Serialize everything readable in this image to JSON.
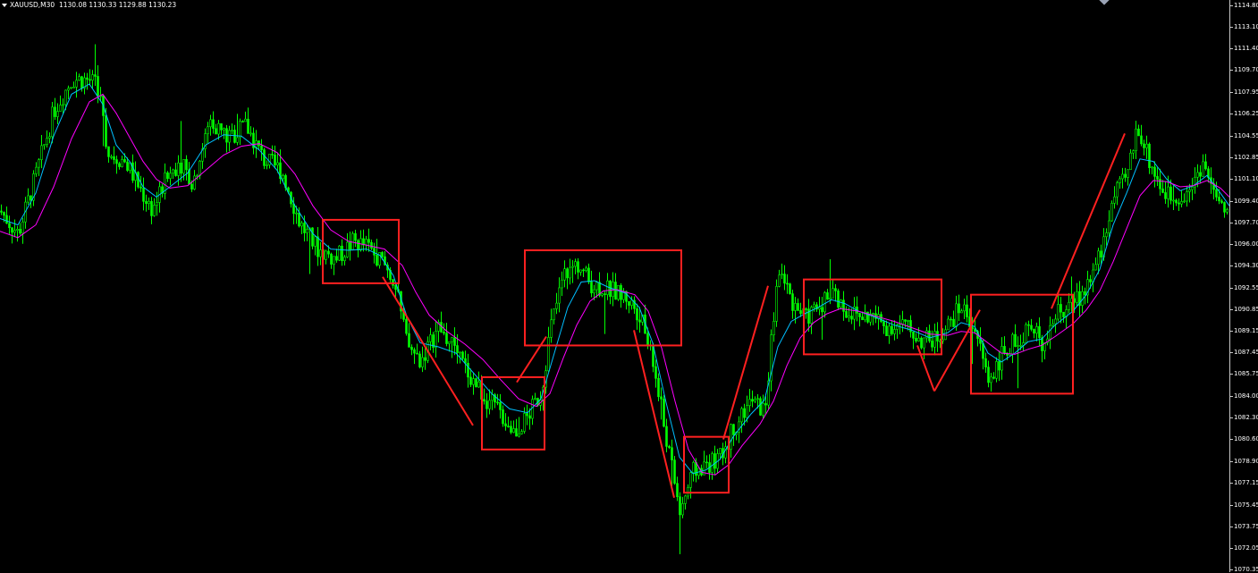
{
  "header": {
    "symbol": "XAUUSD,M30",
    "ohlc": "1130.08 1130.33 1129.88 1130.23"
  },
  "colors": {
    "background": "#000000",
    "candle": "#00ff00",
    "ma_fast": "#00bfff",
    "ma_slow": "#ff00ff",
    "annotation": "#ff2020",
    "axis_text": "#ffffff"
  },
  "chart_data": {
    "type": "line",
    "title": "",
    "xlabel": "",
    "ylabel": "",
    "ylim": [
      1070.35,
      1114.8
    ],
    "y_ticks": [
      "1114.80",
      "1113.10",
      "1111.40",
      "1109.70",
      "1107.95",
      "1106.25",
      "1104.55",
      "1102.85",
      "1101.10",
      "1099.40",
      "1097.70",
      "1096.00",
      "1094.30",
      "1092.55",
      "1090.85",
      "1089.15",
      "1087.45",
      "1085.75",
      "1084.00",
      "1082.30",
      "1080.60",
      "1078.90",
      "1077.15",
      "1075.45",
      "1073.75",
      "1072.05",
      "1070.35"
    ],
    "series": [
      {
        "style": "candles",
        "points": [
          [
            0,
            1098.6
          ],
          [
            20,
            1096.8
          ],
          [
            40,
            1101.5
          ],
          [
            60,
            1106.5
          ],
          [
            80,
            1109.0
          ],
          [
            100,
            1108.9
          ],
          [
            110,
            1108.3
          ],
          [
            120,
            1103.2
          ],
          [
            140,
            1102.5
          ],
          [
            155,
            1100.5
          ],
          [
            170,
            1098.7
          ],
          [
            185,
            1101.0
          ],
          [
            200,
            1102.6
          ],
          [
            215,
            1100.8
          ],
          [
            235,
            1105.8
          ],
          [
            255,
            1104.3
          ],
          [
            275,
            1105.3
          ],
          [
            295,
            1102.6
          ],
          [
            315,
            1101.8
          ],
          [
            335,
            1097.6
          ],
          [
            355,
            1095.6
          ],
          [
            375,
            1094.8
          ],
          [
            395,
            1096.2
          ],
          [
            410,
            1095.8
          ],
          [
            425,
            1094.8
          ],
          [
            440,
            1093.2
          ],
          [
            455,
            1088.0
          ],
          [
            470,
            1086.8
          ],
          [
            490,
            1089.4
          ],
          [
            505,
            1088.0
          ],
          [
            520,
            1086.2
          ],
          [
            540,
            1084.1
          ],
          [
            560,
            1082.6
          ],
          [
            575,
            1081.2
          ],
          [
            590,
            1082.4
          ],
          [
            605,
            1084.3
          ],
          [
            615,
            1089.3
          ],
          [
            630,
            1093.5
          ],
          [
            645,
            1094.5
          ],
          [
            660,
            1092.9
          ],
          [
            680,
            1092.4
          ],
          [
            700,
            1091.8
          ],
          [
            715,
            1090.5
          ],
          [
            730,
            1086.6
          ],
          [
            745,
            1080.6
          ],
          [
            760,
            1074.9
          ],
          [
            775,
            1078.0
          ],
          [
            790,
            1078.6
          ],
          [
            805,
            1079.1
          ],
          [
            820,
            1081.6
          ],
          [
            840,
            1083.6
          ],
          [
            855,
            1082.8
          ],
          [
            870,
            1094.1
          ],
          [
            885,
            1091.6
          ],
          [
            900,
            1090.1
          ],
          [
            915,
            1091.1
          ],
          [
            930,
            1092.4
          ],
          [
            945,
            1090.8
          ],
          [
            960,
            1090.3
          ],
          [
            975,
            1090.3
          ],
          [
            990,
            1089.5
          ],
          [
            1010,
            1089.6
          ],
          [
            1030,
            1088.4
          ],
          [
            1045,
            1088.5
          ],
          [
            1060,
            1089.6
          ],
          [
            1075,
            1091.1
          ],
          [
            1090,
            1089.3
          ],
          [
            1105,
            1085.3
          ],
          [
            1120,
            1087.2
          ],
          [
            1135,
            1088.3
          ],
          [
            1150,
            1089.4
          ],
          [
            1165,
            1088.3
          ],
          [
            1180,
            1090.4
          ],
          [
            1200,
            1091.1
          ],
          [
            1215,
            1092.7
          ],
          [
            1230,
            1095.1
          ],
          [
            1245,
            1099.6
          ],
          [
            1260,
            1101.3
          ],
          [
            1272,
            1105.4
          ],
          [
            1285,
            1102.6
          ],
          [
            1300,
            1100.2
          ],
          [
            1315,
            1099.5
          ],
          [
            1330,
            1100.4
          ],
          [
            1345,
            1102.4
          ],
          [
            1360,
            1099.5
          ],
          [
            1375,
            1097.7
          ]
        ]
      },
      {
        "style": "ma_fast",
        "points": [
          [
            0,
            1098.0
          ],
          [
            20,
            1097.5
          ],
          [
            40,
            1100.0
          ],
          [
            60,
            1104.5
          ],
          [
            80,
            1107.8
          ],
          [
            100,
            1108.6
          ],
          [
            115,
            1107.0
          ],
          [
            130,
            1103.8
          ],
          [
            145,
            1102.5
          ],
          [
            160,
            1100.5
          ],
          [
            175,
            1099.7
          ],
          [
            190,
            1100.5
          ],
          [
            210,
            1101.6
          ],
          [
            230,
            1103.8
          ],
          [
            250,
            1104.6
          ],
          [
            270,
            1104.5
          ],
          [
            290,
            1103.4
          ],
          [
            310,
            1101.8
          ],
          [
            330,
            1099.0
          ],
          [
            350,
            1096.8
          ],
          [
            370,
            1095.6
          ],
          [
            390,
            1095.5
          ],
          [
            410,
            1095.6
          ],
          [
            425,
            1095.1
          ],
          [
            440,
            1093.5
          ],
          [
            455,
            1090.3
          ],
          [
            470,
            1088.2
          ],
          [
            490,
            1087.9
          ],
          [
            510,
            1087.4
          ],
          [
            530,
            1085.8
          ],
          [
            550,
            1084.2
          ],
          [
            570,
            1083.0
          ],
          [
            590,
            1082.7
          ],
          [
            605,
            1083.8
          ],
          [
            620,
            1087.4
          ],
          [
            635,
            1091.0
          ],
          [
            650,
            1093.0
          ],
          [
            665,
            1093.1
          ],
          [
            680,
            1092.6
          ],
          [
            700,
            1092.1
          ],
          [
            715,
            1091.0
          ],
          [
            730,
            1088.2
          ],
          [
            745,
            1083.5
          ],
          [
            760,
            1079.2
          ],
          [
            775,
            1077.9
          ],
          [
            790,
            1078.2
          ],
          [
            805,
            1079.0
          ],
          [
            820,
            1080.8
          ],
          [
            840,
            1082.6
          ],
          [
            855,
            1083.7
          ],
          [
            870,
            1087.9
          ],
          [
            885,
            1089.9
          ],
          [
            900,
            1090.5
          ],
          [
            915,
            1091.0
          ],
          [
            930,
            1091.6
          ],
          [
            945,
            1091.3
          ],
          [
            960,
            1090.7
          ],
          [
            980,
            1090.2
          ],
          [
            1000,
            1089.6
          ],
          [
            1020,
            1089.2
          ],
          [
            1040,
            1088.6
          ],
          [
            1060,
            1089.0
          ],
          [
            1075,
            1089.8
          ],
          [
            1090,
            1089.5
          ],
          [
            1105,
            1087.4
          ],
          [
            1120,
            1086.7
          ],
          [
            1135,
            1087.4
          ],
          [
            1150,
            1088.3
          ],
          [
            1165,
            1088.5
          ],
          [
            1180,
            1089.6
          ],
          [
            1200,
            1090.7
          ],
          [
            1215,
            1092.0
          ],
          [
            1230,
            1094.0
          ],
          [
            1245,
            1097.5
          ],
          [
            1260,
            1100.0
          ],
          [
            1275,
            1102.7
          ],
          [
            1290,
            1102.5
          ],
          [
            1305,
            1101.1
          ],
          [
            1320,
            1100.2
          ],
          [
            1335,
            1100.6
          ],
          [
            1350,
            1101.4
          ],
          [
            1365,
            1100.0
          ],
          [
            1375,
            1099.0
          ]
        ]
      },
      {
        "style": "ma_slow",
        "points": [
          [
            0,
            1097.0
          ],
          [
            20,
            1096.5
          ],
          [
            40,
            1097.5
          ],
          [
            60,
            1100.5
          ],
          [
            80,
            1104.3
          ],
          [
            100,
            1107.2
          ],
          [
            115,
            1107.8
          ],
          [
            130,
            1106.3
          ],
          [
            145,
            1104.4
          ],
          [
            160,
            1102.5
          ],
          [
            175,
            1101.1
          ],
          [
            190,
            1100.4
          ],
          [
            210,
            1100.6
          ],
          [
            230,
            1101.8
          ],
          [
            250,
            1103.0
          ],
          [
            270,
            1103.7
          ],
          [
            290,
            1103.9
          ],
          [
            310,
            1103.2
          ],
          [
            330,
            1101.5
          ],
          [
            350,
            1099.0
          ],
          [
            370,
            1097.1
          ],
          [
            390,
            1096.2
          ],
          [
            410,
            1095.9
          ],
          [
            430,
            1095.6
          ],
          [
            450,
            1094.3
          ],
          [
            465,
            1092.2
          ],
          [
            480,
            1090.4
          ],
          [
            500,
            1089.1
          ],
          [
            520,
            1088.1
          ],
          [
            540,
            1086.9
          ],
          [
            560,
            1085.3
          ],
          [
            580,
            1083.8
          ],
          [
            600,
            1083.2
          ],
          [
            615,
            1084.2
          ],
          [
            630,
            1087.0
          ],
          [
            645,
            1089.6
          ],
          [
            660,
            1091.5
          ],
          [
            675,
            1092.3
          ],
          [
            690,
            1092.4
          ],
          [
            710,
            1092.0
          ],
          [
            725,
            1090.7
          ],
          [
            740,
            1087.8
          ],
          [
            755,
            1083.6
          ],
          [
            770,
            1079.8
          ],
          [
            785,
            1078.0
          ],
          [
            800,
            1077.8
          ],
          [
            815,
            1078.6
          ],
          [
            830,
            1080.1
          ],
          [
            850,
            1081.8
          ],
          [
            865,
            1083.6
          ],
          [
            880,
            1086.4
          ],
          [
            895,
            1088.6
          ],
          [
            910,
            1089.8
          ],
          [
            925,
            1090.5
          ],
          [
            940,
            1090.9
          ],
          [
            960,
            1090.7
          ],
          [
            980,
            1090.3
          ],
          [
            1000,
            1089.9
          ],
          [
            1020,
            1089.4
          ],
          [
            1040,
            1088.9
          ],
          [
            1060,
            1088.8
          ],
          [
            1075,
            1089.1
          ],
          [
            1090,
            1089.0
          ],
          [
            1105,
            1088.2
          ],
          [
            1120,
            1087.4
          ],
          [
            1135,
            1087.3
          ],
          [
            1150,
            1087.7
          ],
          [
            1165,
            1088.0
          ],
          [
            1180,
            1088.7
          ],
          [
            1200,
            1089.7
          ],
          [
            1215,
            1090.8
          ],
          [
            1230,
            1092.3
          ],
          [
            1245,
            1094.6
          ],
          [
            1260,
            1097.2
          ],
          [
            1275,
            1099.8
          ],
          [
            1290,
            1101.0
          ],
          [
            1305,
            1100.9
          ],
          [
            1320,
            1100.5
          ],
          [
            1335,
            1100.6
          ],
          [
            1350,
            1101.0
          ],
          [
            1365,
            1100.4
          ],
          [
            1375,
            1099.7
          ]
        ]
      }
    ],
    "annotations": {
      "boxes": [
        {
          "x0": 361,
          "x1": 446,
          "y0": 1092.9,
          "y1": 1097.9
        },
        {
          "x0": 539,
          "x1": 609,
          "y0": 1079.8,
          "y1": 1085.5
        },
        {
          "x0": 587,
          "x1": 762,
          "y0": 1088.0,
          "y1": 1095.5
        },
        {
          "x0": 765,
          "x1": 815,
          "y0": 1076.4,
          "y1": 1080.8
        },
        {
          "x0": 899,
          "x1": 1053,
          "y0": 1087.3,
          "y1": 1093.2
        },
        {
          "x0": 1086,
          "x1": 1200,
          "y0": 1084.2,
          "y1": 1092.0
        }
      ],
      "lines": [
        {
          "x0": 428,
          "y0": 1093.4,
          "x1": 529,
          "y1": 1081.7
        },
        {
          "x0": 578,
          "y0": 1085.1,
          "x1": 611,
          "y1": 1088.7
        },
        {
          "x0": 709,
          "y0": 1089.2,
          "x1": 754,
          "y1": 1076.0
        },
        {
          "x0": 809,
          "y0": 1080.6,
          "x1": 859,
          "y1": 1092.7
        },
        {
          "x0": 1026,
          "y0": 1088.0,
          "x1": 1045,
          "y1": 1084.4
        },
        {
          "x0": 1045,
          "y0": 1084.4,
          "x1": 1096,
          "y1": 1090.8
        },
        {
          "x0": 1176,
          "y0": 1090.9,
          "x1": 1258,
          "y1": 1104.7
        }
      ]
    }
  }
}
